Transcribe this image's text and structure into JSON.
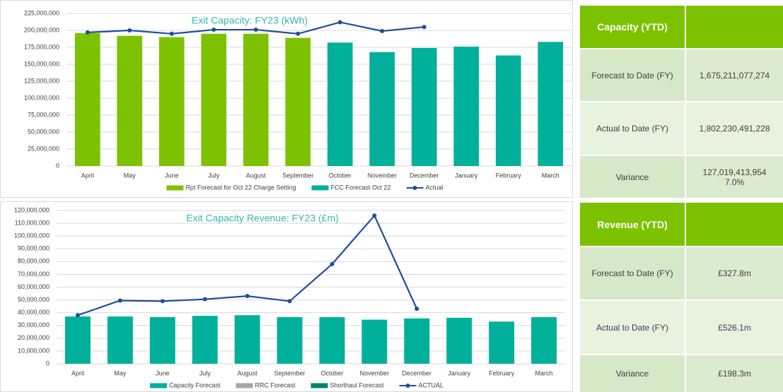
{
  "chart_data": [
    {
      "type": "combo",
      "title": "Exit Capacity: FY23 (kWh)",
      "categories": [
        "April",
        "May",
        "June",
        "July",
        "August",
        "September",
        "October",
        "November",
        "December",
        "January",
        "February",
        "March"
      ],
      "ylim": [
        0,
        225000000
      ],
      "yticks": [
        {
          "value": 0,
          "label": "0"
        },
        {
          "value": 25000000,
          "label": "25,000,000"
        },
        {
          "value": 50000000,
          "label": "50,000,000"
        },
        {
          "value": 75000000,
          "label": "75,000,000"
        },
        {
          "value": 100000000,
          "label": "100,000,000"
        },
        {
          "value": 125000000,
          "label": "125,000,000"
        },
        {
          "value": 150000000,
          "label": "150,000,000"
        },
        {
          "value": 175000000,
          "label": "175,000,000"
        },
        {
          "value": 200000000,
          "label": "200,000,000"
        },
        {
          "value": 225000000,
          "label": "225,000,000"
        }
      ],
      "grid": true,
      "series": [
        {
          "name": "Rpt Forecast for Oct 22 Charge Setting",
          "type": "bar",
          "color": "#7dc200",
          "values": [
            196000000,
            192000000,
            190000000,
            195000000,
            195000000,
            189000000,
            null,
            null,
            null,
            null,
            null,
            null
          ]
        },
        {
          "name": "FCC Forecast Oct 22",
          "type": "bar",
          "color": "#00b09b",
          "values": [
            null,
            null,
            null,
            null,
            null,
            null,
            182000000,
            168000000,
            174000000,
            176000000,
            163000000,
            183000000
          ]
        },
        {
          "name": "Actual",
          "type": "line",
          "color": "#1f4e99",
          "values": [
            197000000,
            200000000,
            195000000,
            201000000,
            201000000,
            195000000,
            212000000,
            199000000,
            205000000,
            null,
            null,
            null
          ]
        }
      ]
    },
    {
      "type": "combo",
      "title": "Exit Capacity Revenue: FY23 (£m)",
      "categories": [
        "April",
        "May",
        "June",
        "July",
        "August",
        "September",
        "October",
        "November",
        "December",
        "January",
        "February",
        "March"
      ],
      "ylim": [
        0,
        120000000
      ],
      "yticks": [
        {
          "value": 0,
          "label": "0"
        },
        {
          "value": 10000000,
          "label": "10,000,000"
        },
        {
          "value": 20000000,
          "label": "20,000,000"
        },
        {
          "value": 30000000,
          "label": "30,000,000"
        },
        {
          "value": 40000000,
          "label": "40,000,000"
        },
        {
          "value": 50000000,
          "label": "50,000,000"
        },
        {
          "value": 60000000,
          "label": "60,000,000"
        },
        {
          "value": 70000000,
          "label": "70,000,000"
        },
        {
          "value": 80000000,
          "label": "80,000,000"
        },
        {
          "value": 90000000,
          "label": "90,000,000"
        },
        {
          "value": 100000000,
          "label": "100,000,000"
        },
        {
          "value": 110000000,
          "label": "110,000,000"
        },
        {
          "value": 120000000,
          "label": "120,000,000"
        }
      ],
      "grid": true,
      "series": [
        {
          "name": "Capacity Forecast",
          "type": "bar",
          "color": "#00b09b",
          "values": [
            37000000,
            37000000,
            36500000,
            37500000,
            38000000,
            36500000,
            36500000,
            34500000,
            35500000,
            36000000,
            33000000,
            36500000
          ]
        },
        {
          "name": "RRC Forecast",
          "type": "bar",
          "color": "#a6a6a6",
          "values": [
            null,
            null,
            null,
            null,
            null,
            null,
            null,
            null,
            null,
            null,
            null,
            null
          ]
        },
        {
          "name": "Shorthaul Forecast",
          "type": "bar",
          "color": "#00846f",
          "values": [
            null,
            null,
            null,
            null,
            null,
            null,
            null,
            null,
            null,
            null,
            null,
            null
          ]
        },
        {
          "name": "ACTUAL",
          "type": "line",
          "color": "#1f4e99",
          "values": [
            38000000,
            49500000,
            49000000,
            50500000,
            53000000,
            49000000,
            78000000,
            116000000,
            43000000,
            null,
            null,
            null
          ]
        }
      ]
    }
  ],
  "tables": [
    {
      "header": "Capacity (YTD)",
      "rows": [
        {
          "label": "Forecast to Date (FY)",
          "value": "1,675,211,077,274"
        },
        {
          "label": "Actual to Date (FY)",
          "value": "1,802,230,491,228"
        },
        {
          "label": "Variance",
          "value": "127,019,413,954",
          "note": "7.0%"
        }
      ]
    },
    {
      "header": "Revenue (YTD)",
      "rows": [
        {
          "label": "Forecast to Date (FY)",
          "value": "£327.8m"
        },
        {
          "label": "Actual to Date (FY)",
          "value": "£526.1m"
        },
        {
          "label": "Variance",
          "value": "£198.3m"
        }
      ]
    }
  ]
}
